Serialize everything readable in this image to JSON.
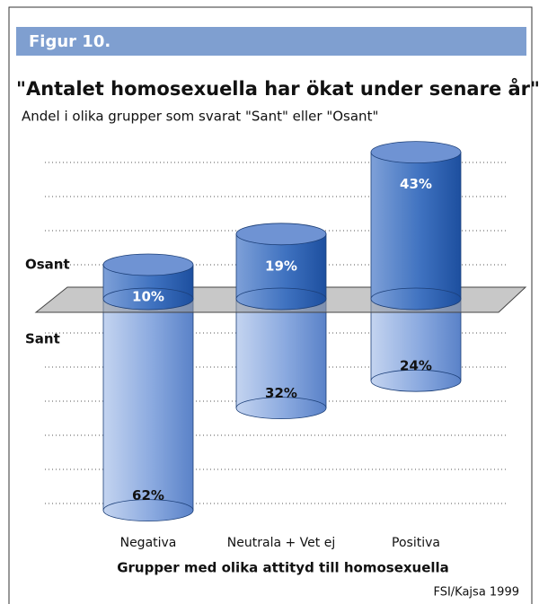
{
  "chart_data": {
    "type": "diverging-cylinder",
    "figure_label": "Figur 10.",
    "title": "\"Antalet homosexuella har ökat under senare år\"",
    "subtitle": "Andel i olika grupper som svarat \"Sant\" eller \"Osant\"",
    "categories": [
      "Negativa",
      "Neutrala + Vet ej",
      "Positiva"
    ],
    "series": [
      {
        "name": "Osant",
        "direction": "up",
        "color": "#2f64b4",
        "values": [
          10,
          19,
          43
        ],
        "value_labels": [
          "10%",
          "19%",
          "43%"
        ]
      },
      {
        "name": "Sant",
        "direction": "down",
        "color": "#7d9fd8",
        "values": [
          62,
          32,
          24
        ],
        "value_labels": [
          "62%",
          "32%",
          "24%"
        ]
      }
    ],
    "ylim": [
      -65,
      50
    ],
    "yticks": [
      -60,
      -50,
      -40,
      -30,
      -20,
      -10,
      10,
      20,
      30,
      40
    ],
    "grid": true,
    "xlabel": "Grupper med olika attityd till homosexuella",
    "source": "FSI/Kajsa 1999"
  }
}
